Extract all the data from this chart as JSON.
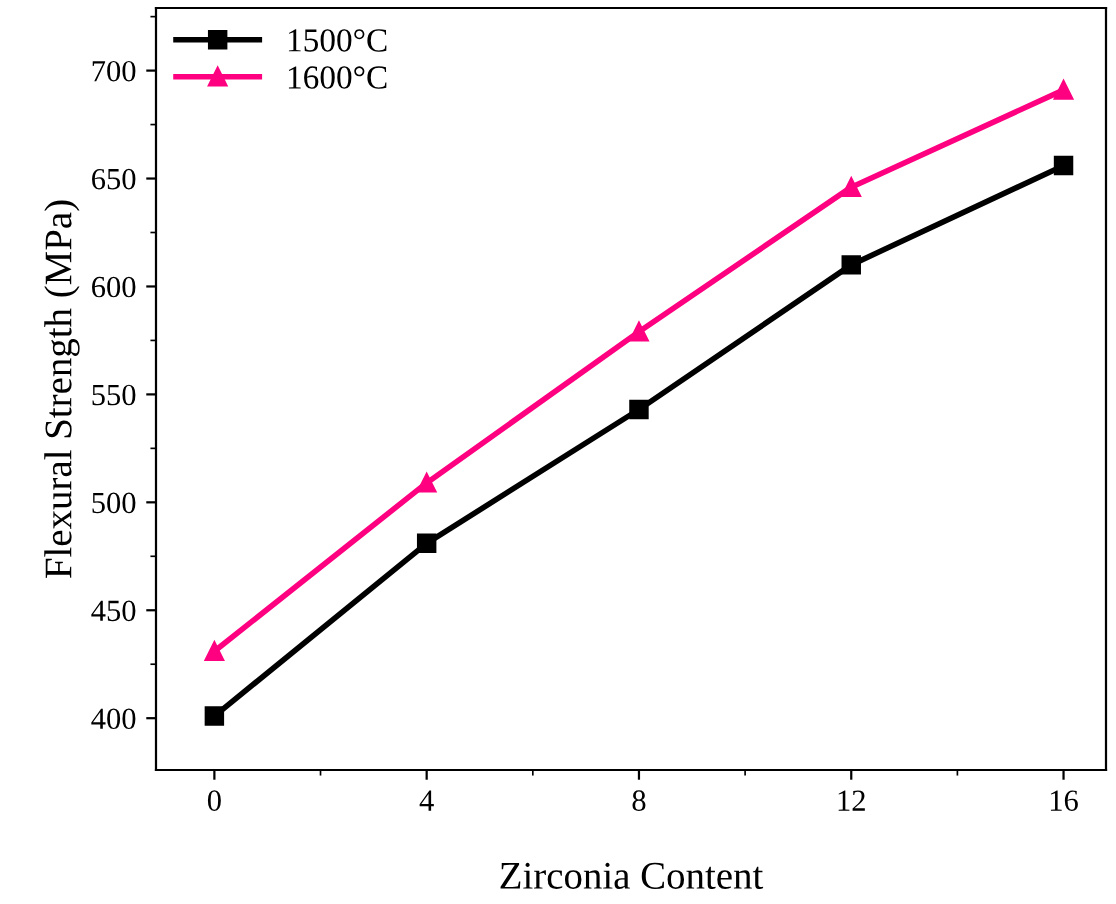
{
  "chart_data": {
    "type": "line",
    "xlabel": "Zirconia Content",
    "ylabel": "Flexural Strength (MPa)",
    "x": [
      0,
      4,
      8,
      12,
      16
    ],
    "series": [
      {
        "name": "1500°C",
        "color": "#000000",
        "marker": "square",
        "values": [
          401,
          481,
          543,
          610,
          656
        ]
      },
      {
        "name": "1600°C",
        "color": "#ff0080",
        "marker": "triangle",
        "values": [
          431,
          509,
          579,
          646,
          691
        ]
      }
    ],
    "xlim": [
      -1.1,
      16.8
    ],
    "ylim": [
      376,
      729
    ],
    "xticks": [
      0,
      4,
      8,
      12,
      16
    ],
    "yticks": [
      400,
      450,
      500,
      550,
      600,
      650,
      700
    ],
    "grid": false,
    "legend": "top left",
    "line_style": "solid"
  }
}
